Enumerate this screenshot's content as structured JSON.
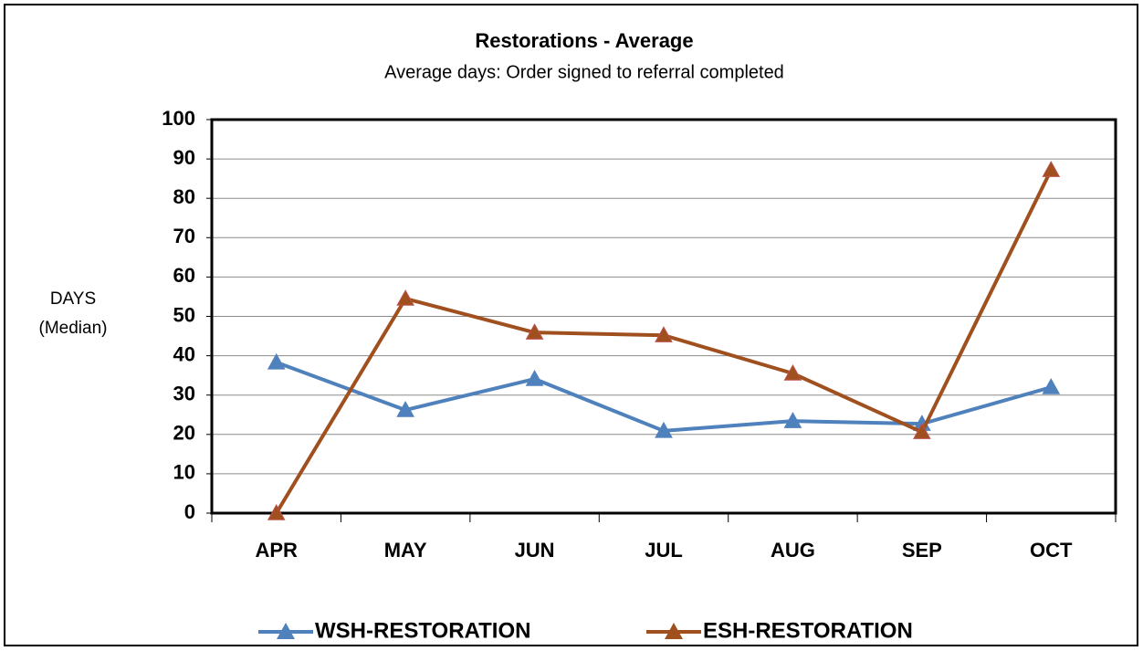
{
  "chart_data": {
    "type": "line",
    "title": "Restorations - Average",
    "subtitle": "Average days: Order signed to referral completed",
    "ylabel": [
      "DAYS",
      "(Median)"
    ],
    "categories": [
      "APR",
      "MAY",
      "JUN",
      "JUL",
      "AUG",
      "SEP",
      "OCT"
    ],
    "series": [
      {
        "name": "WSH-RESTORATION",
        "color": "#4f81bd",
        "values": [
          38.3,
          26.2,
          34.1,
          20.9,
          23.4,
          22.7,
          32.0
        ]
      },
      {
        "name": "ESH-RESTORATION",
        "color": "#a0501e",
        "values": [
          0,
          54.5,
          45.9,
          45.2,
          35.5,
          20.6,
          87.2
        ]
      }
    ],
    "ylim": [
      0,
      100
    ],
    "yticks": [
      0,
      10,
      20,
      30,
      40,
      50,
      60,
      70,
      80,
      90,
      100
    ],
    "grid": true,
    "legend": "bottom"
  }
}
